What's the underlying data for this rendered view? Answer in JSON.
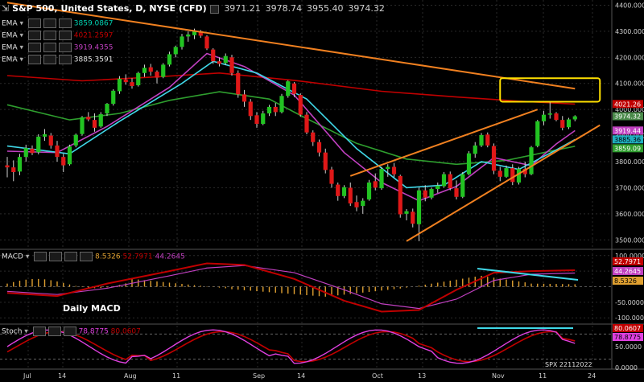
{
  "header": {
    "title": "S&P 500, United States, D, NYSE (CFD)",
    "ohlc": [
      "3971.21",
      "3978.74",
      "3955.40",
      "3974.32"
    ]
  },
  "ema_legend": [
    {
      "label": "EMA",
      "value": "3859.0867",
      "color": "#00d0b0"
    },
    {
      "label": "EMA",
      "value": "4021.2597",
      "color": "#c00000"
    },
    {
      "label": "EMA",
      "value": "3919.4355",
      "color": "#c040c0"
    },
    {
      "label": "EMA",
      "value": "3885.3591",
      "color": "#e0e0e0"
    }
  ],
  "price_tags": [
    {
      "text": "4021.26",
      "value": 4021.26,
      "bg": "#c00000",
      "fg": "#ffffff"
    },
    {
      "text": "3974.32",
      "value": 3974.32,
      "bg": "#4a8a4a",
      "fg": "#ffffff"
    },
    {
      "text": "3919.44",
      "value": 3919.44,
      "bg": "#c040c0",
      "fg": "#ffffff"
    },
    {
      "text": "3885.36",
      "value": 3885.36,
      "bg": "#20b0c0",
      "fg": "#000000"
    },
    {
      "text": "3859.09",
      "value": 3859.09,
      "bg": "#2e9e2e",
      "fg": "#ffffff"
    }
  ],
  "macd": {
    "label": "MACD",
    "values": [
      "8.5326",
      "52.7971",
      "44.2645"
    ],
    "caption": "Daily MACD",
    "tags": [
      {
        "text": "52.7971",
        "value": 52.7971,
        "bg": "#c00000",
        "fg": "#ffffff"
      },
      {
        "text": "44.2645",
        "value": 44.2645,
        "bg": "#c040c0",
        "fg": "#ffffff"
      },
      {
        "text": "8.5326",
        "value": 8.5326,
        "bg": "#e0a030",
        "fg": "#000000"
      }
    ],
    "ticks": [
      "100.0000",
      "50.0000",
      "-50.0000",
      "-100.0000"
    ]
  },
  "stoch": {
    "label": "Stoch",
    "values": [
      "78.8775",
      "80.0607"
    ],
    "tags": [
      {
        "text": "80.0607",
        "value": 80.0607,
        "bg": "#c00000",
        "fg": "#ffffff"
      },
      {
        "text": "78.8775",
        "value": 78.8775,
        "bg": "#e040e0",
        "fg": "#000000"
      }
    ],
    "ticks": [
      "50.0000",
      "0.0000"
    ],
    "watermark": "SPX 22112022"
  },
  "x_labels": [
    "Jul",
    "14",
    "Aug",
    "11",
    "Sep",
    "14",
    "Oct",
    "13",
    "Nov",
    "11",
    "24"
  ],
  "chart_data": {
    "type": "candlestick",
    "title": "S&P 500, United States, D, NYSE (CFD)",
    "y_ticks": [
      3500,
      3600,
      3700,
      3800,
      3900,
      4000,
      4100,
      4200,
      4300,
      4400
    ],
    "ylim": [
      3470,
      4420
    ],
    "candles": [
      [
        3786,
        3818,
        3740,
        3778
      ],
      [
        3778,
        3805,
        3725,
        3760
      ],
      [
        3762,
        3830,
        3748,
        3818
      ],
      [
        3818,
        3865,
        3800,
        3852
      ],
      [
        3850,
        3862,
        3825,
        3833
      ],
      [
        3836,
        3905,
        3828,
        3896
      ],
      [
        3896,
        3925,
        3880,
        3905
      ],
      [
        3900,
        3910,
        3850,
        3862
      ],
      [
        3862,
        3880,
        3800,
        3818
      ],
      [
        3818,
        3830,
        3760,
        3786
      ],
      [
        3790,
        3865,
        3785,
        3858
      ],
      [
        3862,
        3908,
        3855,
        3903
      ],
      [
        3906,
        3975,
        3900,
        3970
      ],
      [
        3972,
        3990,
        3955,
        3962
      ],
      [
        3960,
        3985,
        3915,
        3930
      ],
      [
        3935,
        3990,
        3930,
        3982
      ],
      [
        3985,
        4025,
        3975,
        4022
      ],
      [
        4022,
        4078,
        4015,
        4072
      ],
      [
        4070,
        4128,
        4060,
        4118
      ],
      [
        4115,
        4135,
        4095,
        4105
      ],
      [
        4105,
        4120,
        4080,
        4090
      ],
      [
        4093,
        4145,
        4088,
        4140
      ],
      [
        4140,
        4172,
        4125,
        4160
      ],
      [
        4162,
        4175,
        4130,
        4145
      ],
      [
        4145,
        4150,
        4100,
        4122
      ],
      [
        4125,
        4178,
        4120,
        4172
      ],
      [
        4172,
        4222,
        4165,
        4212
      ],
      [
        4212,
        4245,
        4200,
        4240
      ],
      [
        4240,
        4290,
        4230,
        4280
      ],
      [
        4280,
        4300,
        4260,
        4288
      ],
      [
        4285,
        4310,
        4270,
        4300
      ],
      [
        4300,
        4305,
        4275,
        4283
      ],
      [
        4280,
        4285,
        4228,
        4234
      ],
      [
        4230,
        4235,
        4175,
        4185
      ],
      [
        4185,
        4200,
        4165,
        4175
      ],
      [
        4178,
        4215,
        4170,
        4205
      ],
      [
        4200,
        4210,
        4130,
        4140
      ],
      [
        4140,
        4150,
        4045,
        4058
      ],
      [
        4058,
        4075,
        4010,
        4030
      ],
      [
        4030,
        4040,
        3960,
        3975
      ],
      [
        3978,
        3990,
        3930,
        3945
      ],
      [
        3945,
        3995,
        3940,
        3985
      ],
      [
        3985,
        4018,
        3975,
        4010
      ],
      [
        4010,
        4025,
        3975,
        3990
      ],
      [
        3990,
        4060,
        3985,
        4052
      ],
      [
        4052,
        4112,
        4045,
        4108
      ],
      [
        4100,
        4105,
        4048,
        4060
      ],
      [
        4056,
        4062,
        3972,
        3980
      ],
      [
        3980,
        3990,
        3905,
        3912
      ],
      [
        3912,
        3920,
        3860,
        3875
      ],
      [
        3875,
        3885,
        3820,
        3835
      ],
      [
        3835,
        3850,
        3755,
        3768
      ],
      [
        3770,
        3780,
        3700,
        3715
      ],
      [
        3712,
        3720,
        3650,
        3668
      ],
      [
        3668,
        3710,
        3660,
        3702
      ],
      [
        3700,
        3720,
        3630,
        3640
      ],
      [
        3645,
        3670,
        3610,
        3625
      ],
      [
        3630,
        3660,
        3600,
        3650
      ],
      [
        3655,
        3730,
        3650,
        3720
      ],
      [
        3725,
        3755,
        3690,
        3700
      ],
      [
        3698,
        3780,
        3692,
        3772
      ],
      [
        3772,
        3790,
        3742,
        3780
      ],
      [
        3780,
        3795,
        3740,
        3752
      ],
      [
        3745,
        3750,
        3585,
        3598
      ],
      [
        3600,
        3618,
        3575,
        3610
      ],
      [
        3608,
        3620,
        3548,
        3562
      ],
      [
        3560,
        3700,
        3495,
        3690
      ],
      [
        3690,
        3710,
        3648,
        3662
      ],
      [
        3662,
        3700,
        3655,
        3695
      ],
      [
        3695,
        3720,
        3680,
        3708
      ],
      [
        3706,
        3760,
        3700,
        3752
      ],
      [
        3752,
        3762,
        3690,
        3698
      ],
      [
        3698,
        3728,
        3655,
        3665
      ],
      [
        3665,
        3760,
        3660,
        3752
      ],
      [
        3752,
        3840,
        3748,
        3832
      ],
      [
        3830,
        3875,
        3815,
        3862
      ],
      [
        3862,
        3910,
        3856,
        3902
      ],
      [
        3904,
        3912,
        3855,
        3862
      ],
      [
        3860,
        3870,
        3752,
        3765
      ],
      [
        3765,
        3780,
        3725,
        3742
      ],
      [
        3742,
        3785,
        3738,
        3775
      ],
      [
        3775,
        3790,
        3710,
        3722
      ],
      [
        3720,
        3780,
        3712,
        3772
      ],
      [
        3772,
        3800,
        3740,
        3752
      ],
      [
        3752,
        3860,
        3748,
        3855
      ],
      [
        3860,
        3960,
        3855,
        3955
      ],
      [
        3955,
        3995,
        3940,
        3980
      ],
      [
        3980,
        4030,
        3965,
        3985
      ],
      [
        3985,
        3990,
        3955,
        3960
      ],
      [
        3960,
        3975,
        3920,
        3930
      ],
      [
        3932,
        3968,
        3925,
        3962
      ],
      [
        3962,
        3978,
        3955,
        3974
      ]
    ],
    "ema_series": [
      {
        "name": "EMA",
        "color": "#2e9e2e",
        "points": [
          [
            0,
            4018
          ],
          [
            10,
            3960
          ],
          [
            18,
            3985
          ],
          [
            26,
            4035
          ],
          [
            34,
            4068
          ],
          [
            42,
            4040
          ],
          [
            48,
            3965
          ],
          [
            56,
            3870
          ],
          [
            64,
            3810
          ],
          [
            72,
            3790
          ],
          [
            80,
            3805
          ],
          [
            86,
            3835
          ],
          [
            91,
            3859
          ]
        ]
      },
      {
        "name": "EMA",
        "color": "#c00000",
        "points": [
          [
            0,
            4130
          ],
          [
            12,
            4110
          ],
          [
            24,
            4125
          ],
          [
            34,
            4140
          ],
          [
            46,
            4112
          ],
          [
            60,
            4070
          ],
          [
            72,
            4048
          ],
          [
            82,
            4032
          ],
          [
            91,
            4021
          ]
        ]
      },
      {
        "name": "EMA",
        "color": "#c040c0",
        "points": [
          [
            0,
            3840
          ],
          [
            8,
            3835
          ],
          [
            16,
            3935
          ],
          [
            26,
            4085
          ],
          [
            32,
            4215
          ],
          [
            38,
            4165
          ],
          [
            46,
            4055
          ],
          [
            54,
            3835
          ],
          [
            60,
            3720
          ],
          [
            66,
            3650
          ],
          [
            72,
            3705
          ],
          [
            78,
            3815
          ],
          [
            84,
            3785
          ],
          [
            88,
            3868
          ],
          [
            91,
            3919
          ]
        ]
      },
      {
        "name": "EMA",
        "color": "#40d8e8",
        "points": [
          [
            0,
            3860
          ],
          [
            10,
            3830
          ],
          [
            18,
            3955
          ],
          [
            28,
            4100
          ],
          [
            33,
            4185
          ],
          [
            40,
            4140
          ],
          [
            48,
            4040
          ],
          [
            56,
            3850
          ],
          [
            64,
            3700
          ],
          [
            70,
            3710
          ],
          [
            76,
            3800
          ],
          [
            82,
            3770
          ],
          [
            88,
            3845
          ],
          [
            91,
            3885
          ]
        ]
      }
    ],
    "trendlines": [
      {
        "color": "#f08020",
        "from": [
          0,
          4410
        ],
        "to": [
          91,
          4080
        ]
      },
      {
        "color": "#f08020",
        "from": [
          55,
          3745
        ],
        "to": [
          85,
          4000
        ]
      },
      {
        "color": "#f08020",
        "from": [
          64,
          3495
        ],
        "to": [
          95,
          3940
        ]
      }
    ],
    "highlight": {
      "color": "#ffe000",
      "from": [
        79,
        4030
      ],
      "to": [
        95,
        4120
      ]
    }
  }
}
